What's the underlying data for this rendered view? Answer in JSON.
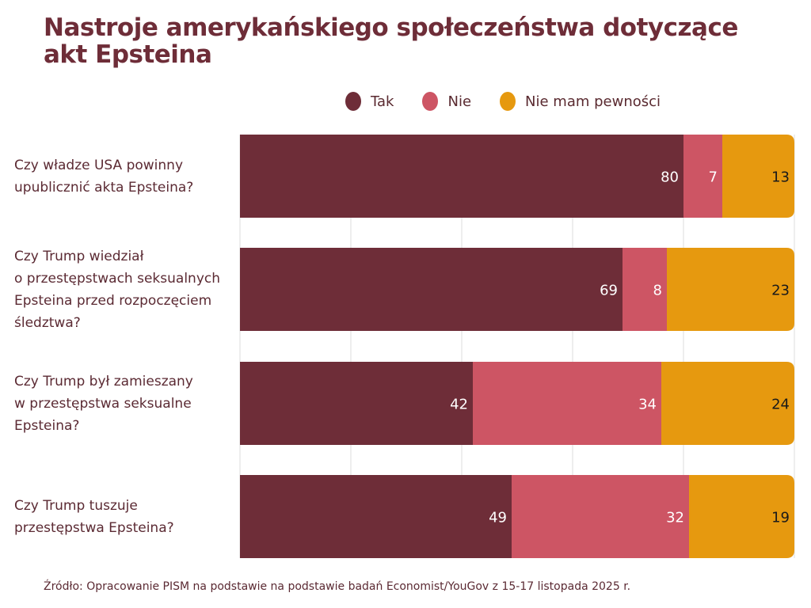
{
  "chart_data": {
    "type": "bar",
    "orientation": "horizontal",
    "stacked": true,
    "title": "Nastroje amerykańskiego społeczeństwa dotyczące akt Epsteina",
    "categories": [
      "Czy władze USA powinny upublicznić akta Epsteina?",
      "Czy Trump wiedział o przestępstwach seksualnych Epsteina przed rozpoczęciem śledztwa?",
      "Czy Trump był zamieszany w przestępstwa seksualne Epsteina?",
      "Czy Trump tuszuje przestępstwa Epsteina?"
    ],
    "category_lines": [
      [
        "Czy władze USA powinny",
        "upublicznić akta Epsteina?"
      ],
      [
        "Czy Trump wiedział",
        "o przestępstwach seksualnych",
        "Epsteina przed rozpoczęciem",
        "śledztwa?"
      ],
      [
        "Czy Trump był zamieszany",
        "w przestępstwa seksualne",
        "Epsteina?"
      ],
      [
        "Czy Trump tuszuje",
        "przestępstwa Epsteina?"
      ]
    ],
    "series": [
      {
        "name": "Tak",
        "color": "#6e2d38",
        "label_color": "#ffffff",
        "values": [
          80,
          69,
          42,
          49
        ]
      },
      {
        "name": "Nie",
        "color": "#cd5564",
        "label_color": "#ffffff",
        "values": [
          7,
          8,
          34,
          32
        ]
      },
      {
        "name": "Nie mam pewności",
        "color": "#e6990f",
        "label_color": "#1a1a1a",
        "values": [
          13,
          23,
          24,
          19
        ]
      }
    ],
    "xlim": [
      0,
      100
    ],
    "grid": true,
    "grid_ticks": [
      0,
      20,
      40,
      60,
      80,
      100
    ],
    "legend_position": "top",
    "xlabel": "",
    "ylabel": ""
  },
  "source": "Źródło: Opracowanie PISM na podstawie na podstawie badań Economist/YouGov z 15-17 listopada 2025 r."
}
